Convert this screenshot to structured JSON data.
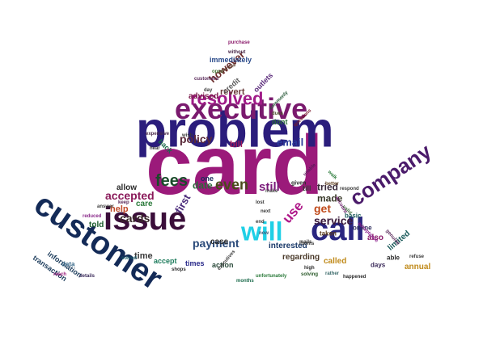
{
  "cloud": {
    "words": [
      {
        "text": "card",
        "color": "#9b1a7a"
      },
      {
        "text": "problem",
        "color": "#2b1d7c"
      },
      {
        "text": "customer",
        "color": "#132a57"
      },
      {
        "text": "issue",
        "color": "#3b0e3a"
      },
      {
        "text": "call",
        "color": "#2a2680"
      },
      {
        "text": "executive",
        "color": "#7a1a6e"
      },
      {
        "text": "company",
        "color": "#4a1a6a"
      },
      {
        "text": "will",
        "color": "#1fd0e6"
      },
      {
        "text": "resolved",
        "color": "#a01b88"
      },
      {
        "text": "fees",
        "color": "#1a4a2a"
      },
      {
        "text": "even",
        "color": "#4a4a1a"
      },
      {
        "text": "policy",
        "color": "#5a2a3a"
      },
      {
        "text": "email",
        "color": "#2a3a9a"
      },
      {
        "text": "payment",
        "color": "#2a4a7a"
      },
      {
        "text": "service",
        "color": "#3a1a3a"
      },
      {
        "text": "still",
        "color": "#7a1a7a"
      },
      {
        "text": "use",
        "color": "#b01a8a"
      },
      {
        "text": "get",
        "color": "#c04a1a"
      },
      {
        "text": "however",
        "color": "#6a2a2a"
      },
      {
        "text": "cards",
        "color": "#3a2a2a"
      },
      {
        "text": "accepted",
        "color": "#8a1a5a"
      },
      {
        "text": "immediately",
        "color": "#2a4a8a"
      },
      {
        "text": "revert",
        "color": "#6a3a3a"
      },
      {
        "text": "advised",
        "color": "#7a1a4a"
      },
      {
        "text": "time",
        "color": "#3a3a3a"
      },
      {
        "text": "date",
        "color": "#2a6a3a"
      },
      {
        "text": "first",
        "color": "#4a2a7a"
      },
      {
        "text": "help",
        "color": "#c04a2a"
      },
      {
        "text": "tried",
        "color": "#3a2a3a"
      },
      {
        "text": "made",
        "color": "#3a3a2a"
      },
      {
        "text": "regarding",
        "color": "#4a3a2a"
      },
      {
        "text": "interested",
        "color": "#1a3a6a"
      },
      {
        "text": "information",
        "color": "#1a3a5a"
      },
      {
        "text": "transaction",
        "color": "#1a3a5a"
      },
      {
        "text": "limited",
        "color": "#1a5a5a"
      },
      {
        "text": "annual",
        "color": "#c08a1a"
      },
      {
        "text": "also",
        "color": "#8a1a6a"
      },
      {
        "text": "case",
        "color": "#2a2a2a"
      },
      {
        "text": "action",
        "color": "#2a4a3a"
      },
      {
        "text": "online",
        "color": "#2a2a5a"
      },
      {
        "text": "taken",
        "color": "#5a3a1a"
      },
      {
        "text": "called",
        "color": "#c08a1a"
      },
      {
        "text": "basic",
        "color": "#1a5a5a"
      },
      {
        "text": "bill",
        "color": "#a01a5a"
      },
      {
        "text": "dont",
        "color": "#2a6a3a"
      },
      {
        "text": "credit",
        "color": "#5a5a5a"
      },
      {
        "text": "outlets",
        "color": "#5a2a7a"
      },
      {
        "text": "allow",
        "color": "#2a2a2a"
      },
      {
        "text": "care",
        "color": "#2a7a3a"
      },
      {
        "text": "told",
        "color": "#1a5a2a"
      },
      {
        "text": "one",
        "color": "#1a2a5a"
      },
      {
        "text": "till",
        "color": "#3a3a3a"
      },
      {
        "text": "accept",
        "color": "#1a7a5a"
      },
      {
        "text": "times",
        "color": "#2a2a8a"
      },
      {
        "text": "days",
        "color": "#3a2a5a"
      },
      {
        "text": "able",
        "color": "#2a2a2a"
      },
      {
        "text": "data",
        "color": "#3a6a8a"
      },
      {
        "text": "back",
        "color": "#1a6a4a"
      },
      {
        "text": "given",
        "color": "#2a2a2a"
      },
      {
        "text": "high",
        "color": "#2a2a2a"
      },
      {
        "text": "solving",
        "color": "#2a5a2a"
      },
      {
        "text": "rather",
        "color": "#3a6a6a"
      },
      {
        "text": "happened",
        "color": "#2a2a2a"
      },
      {
        "text": "refuse",
        "color": "#3a3a3a"
      },
      {
        "text": "unfortunately",
        "color": "#2a7a3a"
      },
      {
        "text": "months",
        "color": "#1a6a4a"
      },
      {
        "text": "executives",
        "color": "#3a3a3a"
      },
      {
        "text": "shops",
        "color": "#2a2a2a"
      },
      {
        "text": "solved",
        "color": "#1a5a6a"
      },
      {
        "text": "details",
        "color": "#3a2a5a"
      },
      {
        "text": "reach",
        "color": "#9a1a7a"
      },
      {
        "text": "reduced",
        "color": "#8a2a8a"
      },
      {
        "text": "answer",
        "color": "#3a3a3a"
      },
      {
        "text": "keep",
        "color": "#5a2a5a"
      },
      {
        "text": "hear",
        "color": "#3a3a3a"
      },
      {
        "text": "expensive",
        "color": "#4a2a4a"
      },
      {
        "text": "wish",
        "color": "#3a3a3a"
      },
      {
        "text": "day",
        "color": "#3a3a3a"
      },
      {
        "text": "open",
        "color": "#4a7a3a"
      },
      {
        "text": "customers",
        "color": "#5a2a5a"
      },
      {
        "text": "horrible",
        "color": "#5a3a2a"
      },
      {
        "text": "purchase",
        "color": "#8a1a6a"
      },
      {
        "text": "without",
        "color": "#4a2a4a"
      },
      {
        "text": "commonly",
        "color": "#2a5a3a"
      },
      {
        "text": "dues",
        "color": "#4a4a2a"
      },
      {
        "text": "questions",
        "color": "#7a1a2a"
      },
      {
        "text": "unable",
        "color": "#5a1a5a"
      },
      {
        "text": "rooms",
        "color": "#3a3a3a"
      },
      {
        "text": "better",
        "color": "#6a4a2a"
      },
      {
        "text": "respond",
        "color": "#3a3a3a"
      },
      {
        "text": "valid",
        "color": "#3a6a3a"
      },
      {
        "text": "account",
        "color": "#6a1a6a"
      },
      {
        "text": "acceptance",
        "color": "#8a1a8a"
      },
      {
        "text": "genuine",
        "color": "#5a2a5a"
      },
      {
        "text": "end",
        "color": "#3a3a3a"
      },
      {
        "text": "now",
        "color": "#3a5a7a"
      },
      {
        "text": "next",
        "color": "#3a3a3a"
      },
      {
        "text": "lost",
        "color": "#3a3a3a"
      },
      {
        "text": "walk",
        "color": "#2a7a3a"
      },
      {
        "text": "make",
        "color": "#4a4a4a"
      },
      {
        "text": "mails",
        "color": "#3a3a3a"
      }
    ]
  }
}
